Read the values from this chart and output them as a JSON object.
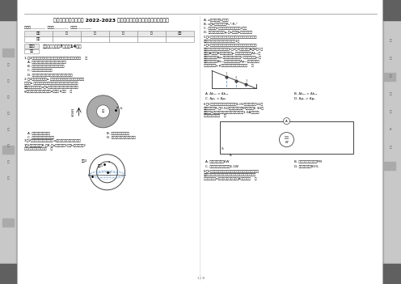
{
  "page_bg": "#e8e8e8",
  "white_bg": "#ffffff",
  "sidebar_gray": "#c8c8c8",
  "sidebar_dark": "#666666",
  "title": "湖南省岳阳市教研联盟 2022-2023 学年高二上学期物理期中联考联评试卷",
  "info_line": "姓名：________  班级：________  号码：________",
  "table_headers": [
    "题号",
    "一",
    "二",
    "三",
    "四",
    "总计"
  ],
  "table_row2_label": "评分",
  "box_label1": "阅卷人",
  "box_label2": "得分",
  "section_label": "一、单选题（共7题，共14分）",
  "page_number": "1 / 8",
  "left_sidebar_chars": [
    "装",
    "订",
    "线",
    "内",
    "不",
    "要",
    "答",
    "题"
  ],
  "right_sidebar_chars": [
    "物",
    "理",
    "试",
    "卷",
    "共",
    "8",
    "页"
  ]
}
